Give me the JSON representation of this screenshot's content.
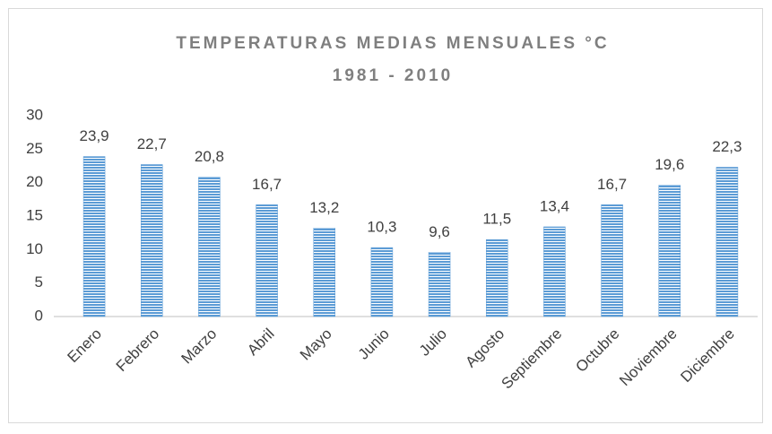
{
  "chart_data": {
    "type": "bar",
    "title": "TEMPERATURAS MEDIAS MENSUALES °C",
    "subtitle": "1981 - 2010",
    "categories": [
      "Enero",
      "Febrero",
      "Marzo",
      "Abril",
      "Mayo",
      "Junio",
      "Julio",
      "Agosto",
      "Septiembre",
      "Octubre",
      "Noviembre",
      "Diciembre"
    ],
    "values": [
      23.9,
      22.7,
      20.8,
      16.7,
      13.2,
      10.3,
      9.6,
      11.5,
      13.4,
      16.7,
      19.6,
      22.3
    ],
    "value_labels": [
      "23,9",
      "22,7",
      "20,8",
      "16,7",
      "13,2",
      "10,3",
      "9,6",
      "11,5",
      "13,4",
      "16,7",
      "19,6",
      "22,3"
    ],
    "color": "#5b9bd5",
    "ylim": [
      0,
      30
    ],
    "yticks": [
      0,
      5,
      10,
      15,
      20,
      25,
      30
    ],
    "grid": false
  }
}
